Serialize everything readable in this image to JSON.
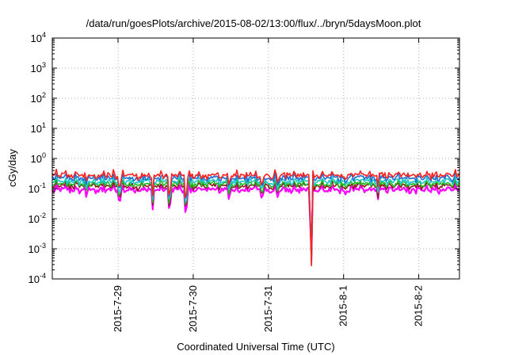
{
  "chart_data": {
    "type": "line",
    "title": "/data/run/goesPlots/archive/2015-08-02/13:00/flux/../bryn/5daysMoon.plot",
    "xlabel": "Coordinated Universal Time (UTC)",
    "ylabel": "cGy/day",
    "y_scale": "log",
    "ylim": [
      0.0001,
      10000
    ],
    "y_ticks": [
      {
        "value": 0.0001,
        "base": "10",
        "exp": "-4"
      },
      {
        "value": 0.001,
        "base": "10",
        "exp": "-3"
      },
      {
        "value": 0.01,
        "base": "10",
        "exp": "-2"
      },
      {
        "value": 0.1,
        "base": "10",
        "exp": "-1"
      },
      {
        "value": 1,
        "base": "10",
        "exp": "0"
      },
      {
        "value": 10,
        "base": "10",
        "exp": "1"
      },
      {
        "value": 100,
        "base": "10",
        "exp": "2"
      },
      {
        "value": 1000,
        "base": "10",
        "exp": "3"
      },
      {
        "value": 10000,
        "base": "10",
        "exp": "4"
      }
    ],
    "xlim": [
      "2015-07-28 03:00",
      "2015-08-02 13:00"
    ],
    "x_ticks": [
      "2015-7-29",
      "2015-7-30",
      "2015-7-31",
      "2015-8-1",
      "2015-8-2"
    ],
    "grid": true,
    "series": [
      {
        "color": "#ff2020",
        "base": 0.27
      },
      {
        "color": "#1e6fd0",
        "base": 0.22
      },
      {
        "color": "#20c8c8",
        "base": 0.17
      },
      {
        "color": "#22b822",
        "base": 0.14
      },
      {
        "color": "#8b1a1a",
        "base": 0.12
      },
      {
        "color": "#ff00ff",
        "base": 0.09
      }
    ],
    "dips": [
      {
        "time": "2015-07-28 14:00",
        "depth": 0.6
      },
      {
        "time": "2015-07-29 00:30",
        "depth": 0.3
      },
      {
        "time": "2015-07-29 11:00",
        "depth": 0.25
      },
      {
        "time": "2015-07-29 16:30",
        "depth": 0.12
      },
      {
        "time": "2015-07-29 21:40",
        "depth": 0.07
      },
      {
        "time": "2015-07-30 11:30",
        "depth": 0.35
      },
      {
        "time": "2015-07-30 22:00",
        "depth": 0.4
      },
      {
        "time": "2015-07-31 03:00",
        "depth": 0.5
      },
      {
        "time": "2015-07-31 13:40",
        "depth": 0.00233
      },
      {
        "time": "2015-08-01 00:30",
        "depth": 0.6
      },
      {
        "time": "2015-08-01 11:00",
        "depth": 0.5
      }
    ]
  }
}
